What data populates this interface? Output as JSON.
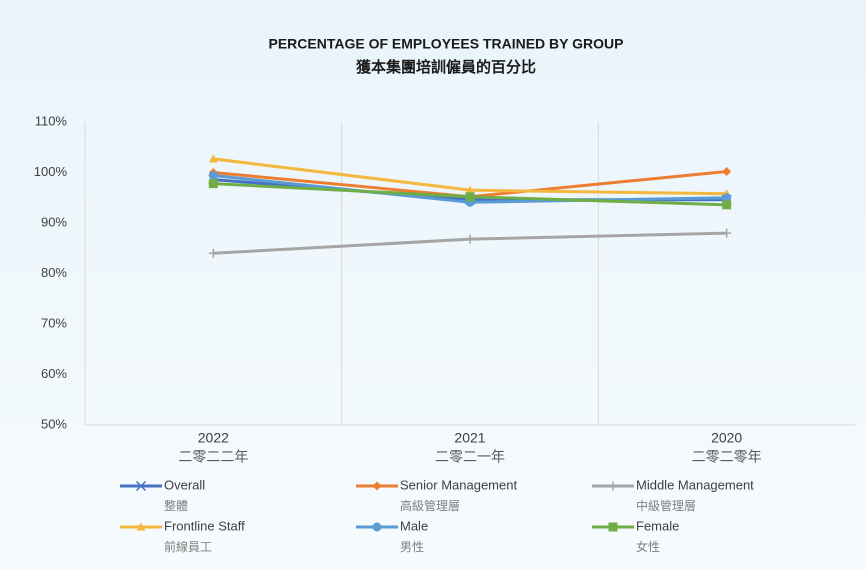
{
  "chart_data": {
    "type": "line",
    "title": "PERCENTAGE OF EMPLOYEES TRAINED BY GROUP",
    "subtitle": "獲本集團培訓僱員的百分比",
    "categories": [
      "2022",
      "2021",
      "2020"
    ],
    "category_labels_zh": [
      "二零二二年",
      "二零二一年",
      "二零二零年"
    ],
    "ylim": [
      50,
      110
    ],
    "yticks": [
      {
        "value": 50,
        "label": "50%"
      },
      {
        "value": 60,
        "label": "60%"
      },
      {
        "value": 70,
        "label": "70%"
      },
      {
        "value": 80,
        "label": "80%"
      },
      {
        "value": 90,
        "label": "90%"
      },
      {
        "value": 100,
        "label": "100%"
      },
      {
        "value": 110,
        "label": "110%"
      }
    ],
    "series": [
      {
        "name": "Overall",
        "name_zh": "整體",
        "color": "#4472c4",
        "marker": "x",
        "values": [
          98.6,
          94.6,
          94.6
        ]
      },
      {
        "name": "Senior Management",
        "name_zh": "高級管理層",
        "color": "#ed7d31",
        "marker": "diamond",
        "values": [
          100,
          95.2,
          100.2
        ]
      },
      {
        "name": "Middle Management",
        "name_zh": "中級管理層",
        "color": "#a5a5a5",
        "marker": "plus",
        "values": [
          84,
          86.8,
          88
        ]
      },
      {
        "name": "Frontline Staff",
        "name_zh": "前線員工",
        "color": "#f4b83e",
        "marker": "triangle",
        "values": [
          102.7,
          96.5,
          95.8
        ]
      },
      {
        "name": "Male",
        "name_zh": "男性",
        "color": "#5b9bd5",
        "marker": "circle",
        "values": [
          99.4,
          94.1,
          95
        ]
      },
      {
        "name": "Female",
        "name_zh": "女性",
        "color": "#70ad47",
        "marker": "square",
        "values": [
          97.8,
          95.2,
          93.6
        ]
      }
    ]
  }
}
